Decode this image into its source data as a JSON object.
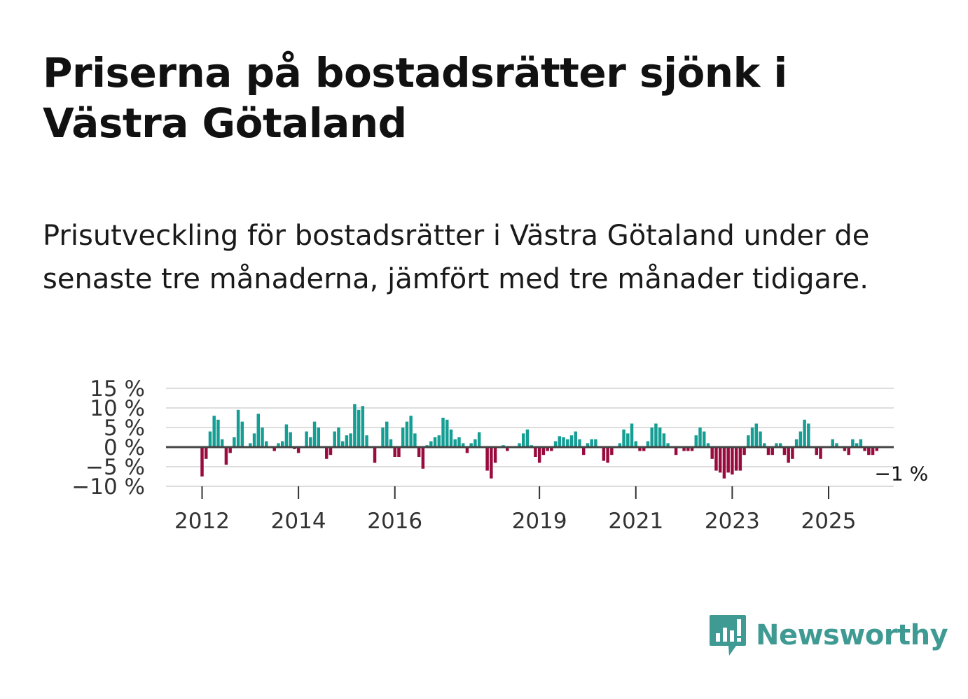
{
  "title": "Priserna på bostadsrätter sjönk i Västra Götaland",
  "subtitle": "Prisutveckling för bostadsrätter i Västra Götaland under de senaste tre månaderna, jämfört med tre månader tidigare.",
  "brand": {
    "name": "Newsworthy",
    "color": "#3f9a93",
    "icon": "newsworthy-chat-bars-icon"
  },
  "colors": {
    "positive": "#159e94",
    "negative": "#990b3e",
    "zero_line": "#444444",
    "grid": "#dddddd"
  },
  "chart_data": {
    "type": "bar",
    "title": "",
    "xlabel": "",
    "ylabel": "",
    "ylim": [
      -10,
      15
    ],
    "y_ticks": [
      15,
      10,
      5,
      0,
      -5,
      -10
    ],
    "y_tick_labels": [
      "15 %",
      "10 %",
      "5 %",
      "0 %",
      "−5 %",
      "−10 %"
    ],
    "x_ticks": [
      2012,
      2014,
      2016,
      2019,
      2021,
      2023,
      2025
    ],
    "x_tick_labels": [
      "2012",
      "2014",
      "2016",
      "2019",
      "2021",
      "2023",
      "2025"
    ],
    "start": "2012-01",
    "frequency": "monthly",
    "last_value_label": "−1 %",
    "values": [
      -7.5,
      -3,
      4,
      8,
      7,
      2,
      -4.5,
      -1.5,
      2.5,
      9.5,
      6.5,
      0,
      1,
      3.5,
      8.5,
      5,
      1.5,
      0,
      -1,
      1,
      1.5,
      5.8,
      3.8,
      -0.5,
      -1.5,
      0,
      4,
      2.5,
      6.5,
      5,
      0,
      -3,
      -2,
      4,
      5,
      1.5,
      3,
      3.5,
      11,
      9.5,
      10.5,
      3,
      0,
      -4,
      0,
      5,
      6.5,
      2,
      -2.5,
      -2.5,
      5,
      6.5,
      8,
      3.5,
      -2.5,
      -5.5,
      0.5,
      1.5,
      2.5,
      3,
      7.5,
      7,
      4.5,
      2,
      2.5,
      1,
      -1.5,
      1,
      2,
      3.8,
      0,
      -6,
      -8,
      -4,
      0,
      0.5,
      -1,
      0,
      0,
      1,
      3.5,
      4.5,
      0.5,
      -2.5,
      -4,
      -2,
      -1,
      -1,
      1.5,
      2.8,
      2.5,
      2,
      3,
      4,
      2,
      -2,
      1,
      2,
      2,
      0,
      -3.5,
      -4,
      -2,
      0,
      1,
      4.5,
      3.5,
      6,
      1.5,
      -1,
      -1,
      1.5,
      5,
      6,
      5,
      3.5,
      1,
      0,
      -2,
      0,
      -1,
      -1,
      -1,
      3,
      5,
      4,
      1,
      -3,
      -6,
      -6.5,
      -8,
      -6.5,
      -7,
      -6,
      -6,
      -2,
      3,
      5,
      6,
      4,
      1,
      -2,
      -2,
      1,
      1,
      -2,
      -4,
      -3,
      2,
      4,
      7,
      6,
      0,
      -2,
      -3,
      0,
      0,
      2,
      1,
      0,
      -1,
      -2,
      2,
      1,
      2,
      -1,
      -2,
      -2,
      -1
    ]
  }
}
